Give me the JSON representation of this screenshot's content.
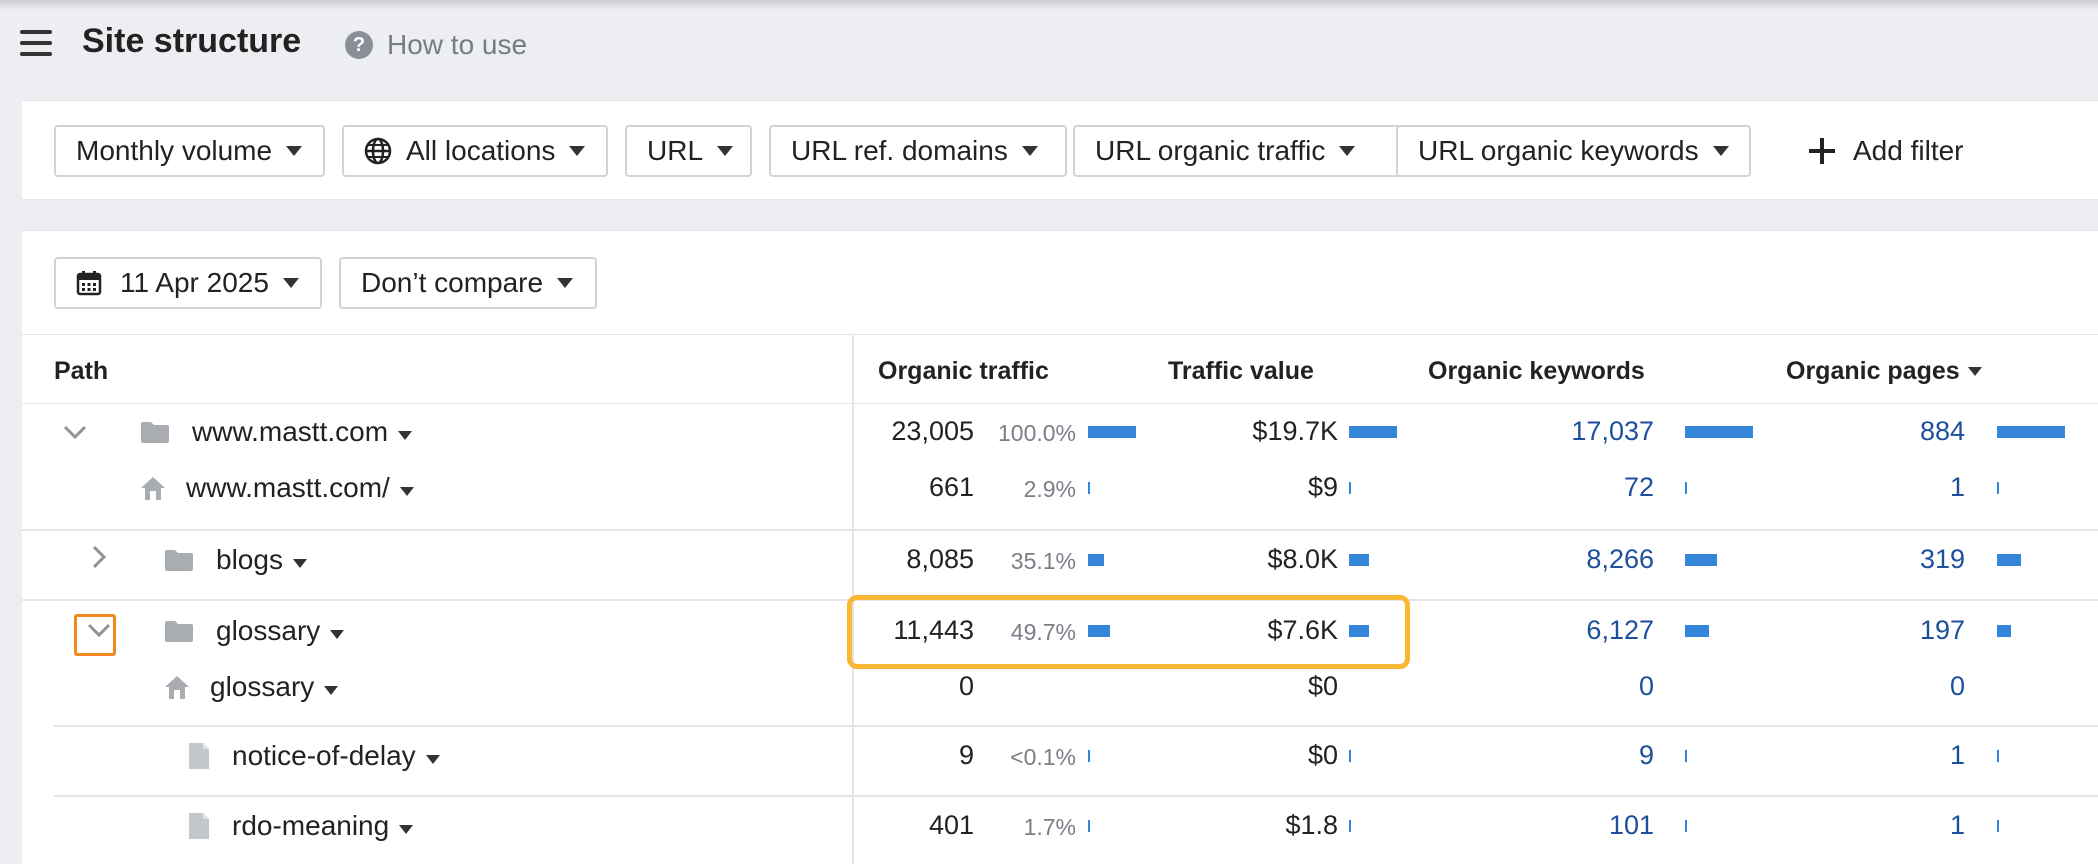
{
  "header": {
    "title": "Site structure",
    "howto_label": "How to use"
  },
  "filters": [
    {
      "label": "Monthly volume"
    },
    {
      "label": "All locations"
    },
    {
      "label": "URL"
    },
    {
      "label": "URL ref. domains"
    },
    {
      "label": "URL organic traffic"
    },
    {
      "label": "URL organic keywords"
    }
  ],
  "add_filter_label": "Add filter",
  "date_label": "11 Apr 2025",
  "compare_label": "Don’t compare",
  "columns": {
    "path": "Path",
    "organic_traffic": "Organic traffic",
    "traffic_value": "Traffic value",
    "organic_keywords": "Organic keywords",
    "organic_pages": "Organic pages"
  },
  "rows": [
    {
      "path": "www.mastt.com",
      "traffic": "23,005",
      "pct": "100.0%",
      "value": "$19.7K",
      "keywords": "17,037",
      "pages": "884"
    },
    {
      "path": "www.mastt.com/",
      "traffic": "661",
      "pct": "2.9%",
      "value": "$9",
      "keywords": "72",
      "pages": "1"
    },
    {
      "path": "blogs",
      "traffic": "8,085",
      "pct": "35.1%",
      "value": "$8.0K",
      "keywords": "8,266",
      "pages": "319"
    },
    {
      "path": "glossary",
      "traffic": "11,443",
      "pct": "49.7%",
      "value": "$7.6K",
      "keywords": "6,127",
      "pages": "197"
    },
    {
      "path": "glossary",
      "traffic": "0",
      "pct": "",
      "value": "$0",
      "keywords": "0",
      "pages": "0"
    },
    {
      "path": "notice-of-delay",
      "traffic": "9",
      "pct": "<0.1%",
      "value": "$0",
      "keywords": "9",
      "pages": "1"
    },
    {
      "path": "rdo-meaning",
      "traffic": "401",
      "pct": "1.7%",
      "value": "$1.8",
      "keywords": "101",
      "pages": "1"
    }
  ],
  "colors": {
    "bar": "#3585db",
    "link_blue": "#1d4f9c",
    "highlight_yellow": "#f9b733",
    "highlight_orange": "#f08a1c"
  }
}
